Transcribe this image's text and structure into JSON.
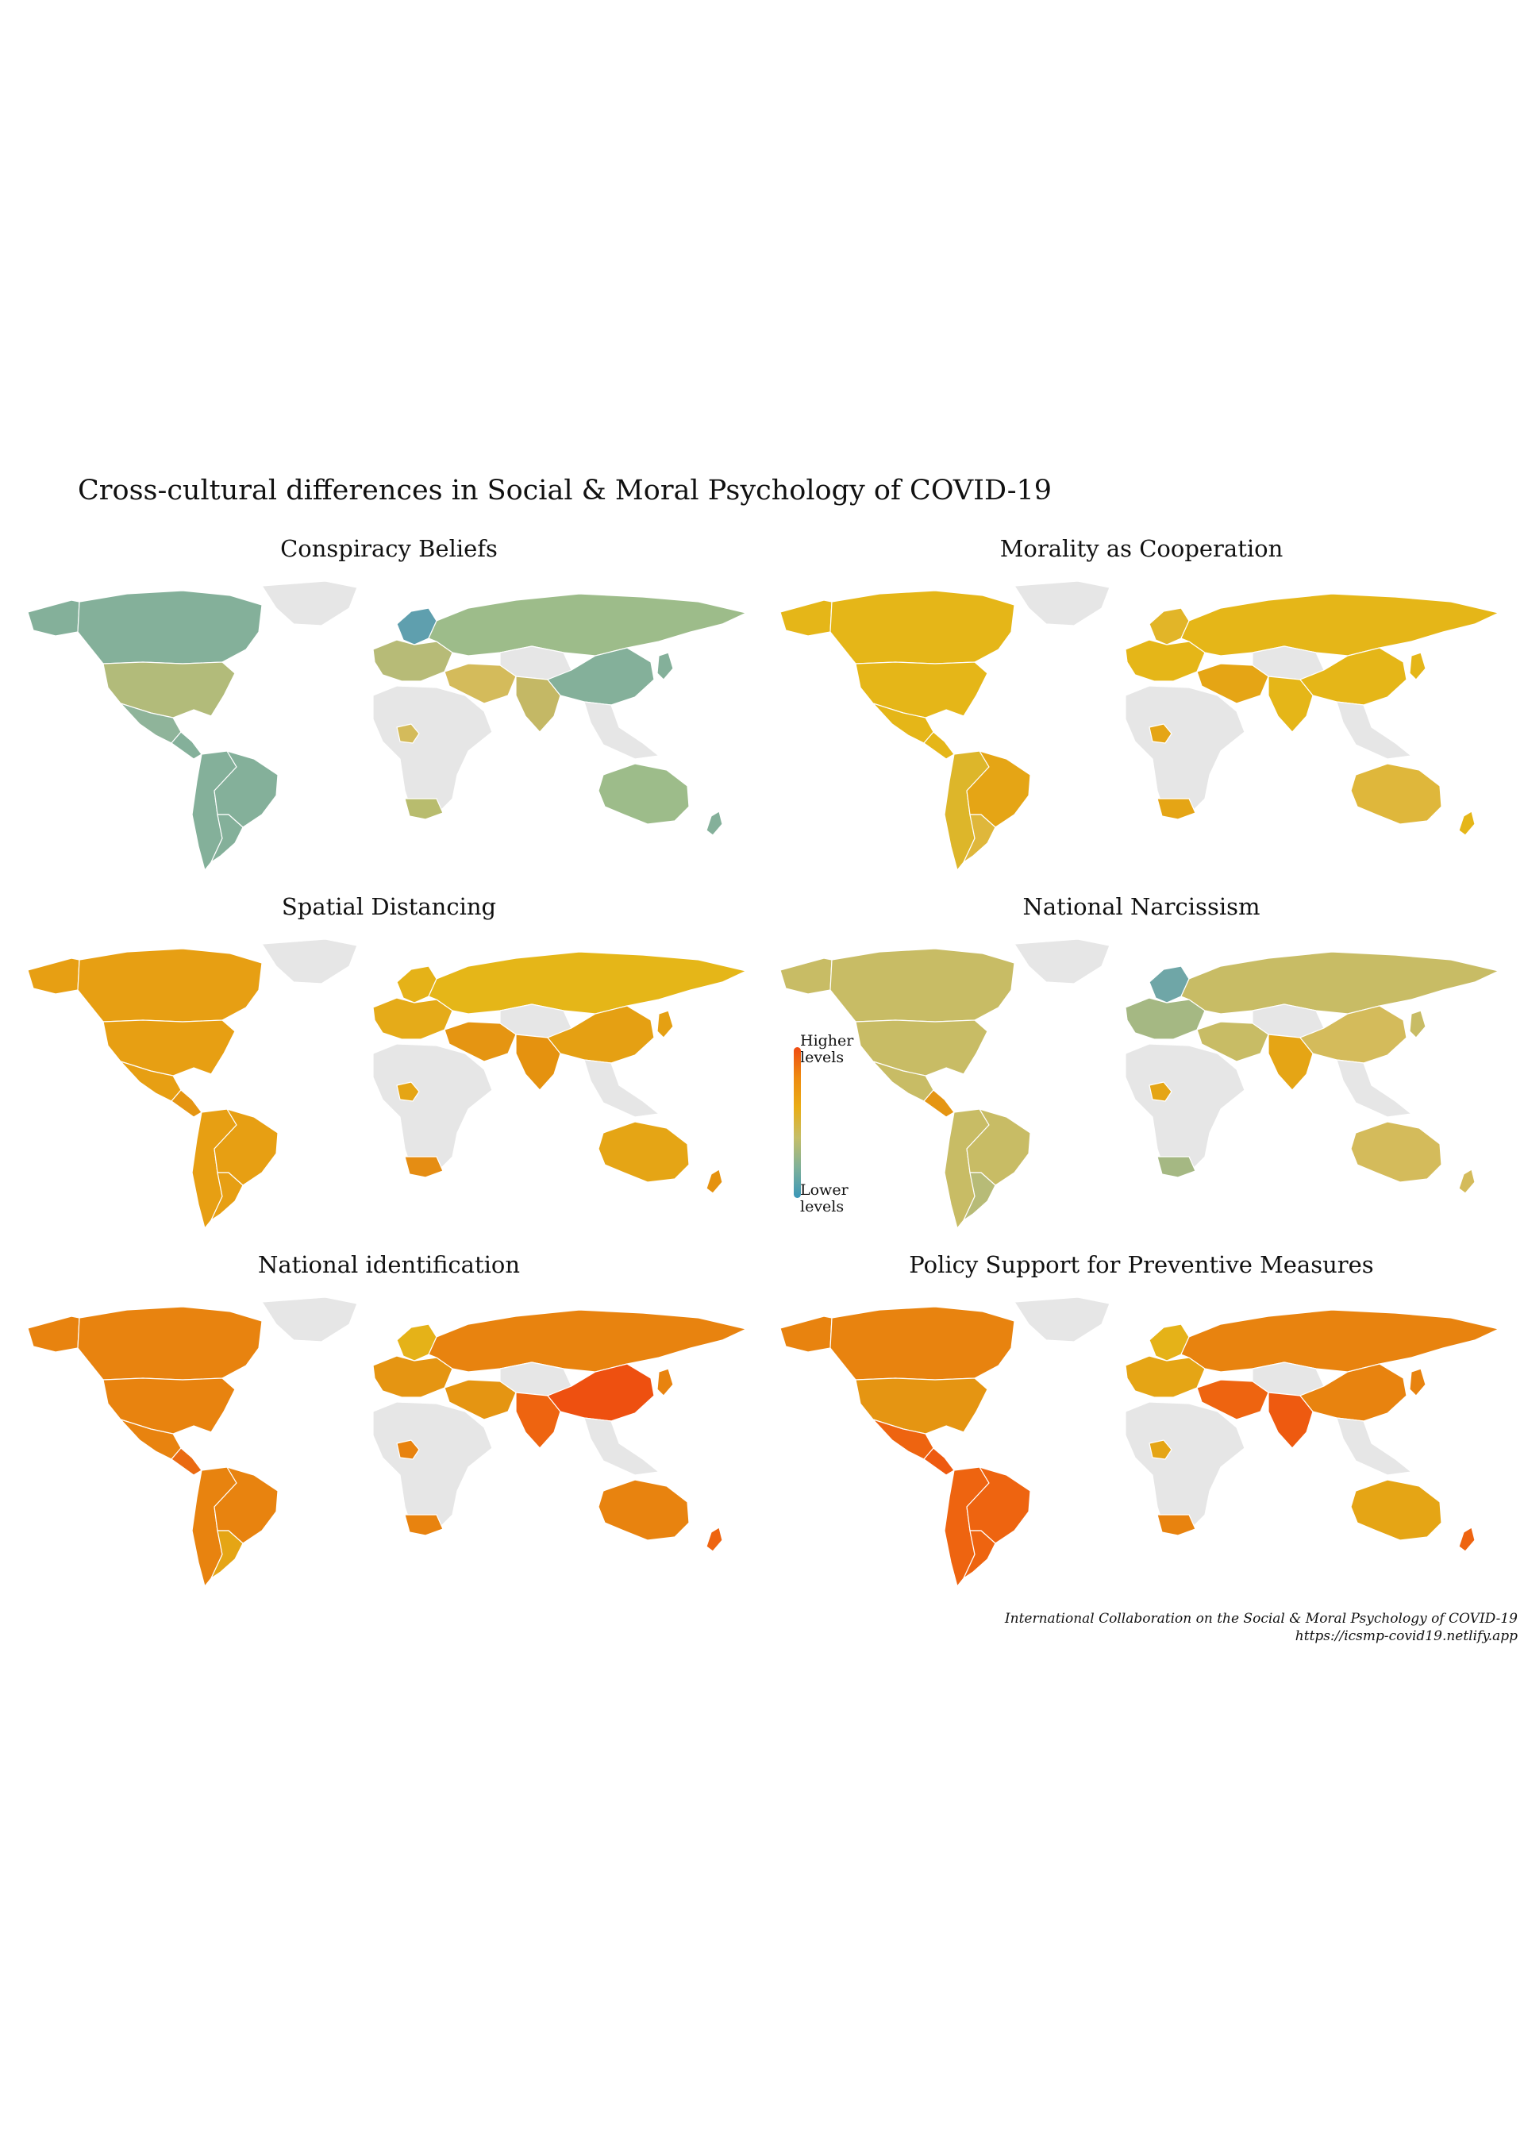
{
  "title": "Cross-cultural differences in Social & Moral Psychology of COVID-19",
  "panels": [
    {
      "title": "Conspiracy Beliefs",
      "colors": {
        "north_america": "#84b09a",
        "canada": "#84b09a",
        "usa": "#b2bb7a",
        "mexico": "#8fb49a",
        "central_america": "#84b09a",
        "south_america": "#84b09a",
        "brazil": "#84b09a",
        "argentina": "#84b09a",
        "greenland": "#e6e6e6",
        "europe_west": "#b7bb77",
        "europe_north": "#5f9fae",
        "russia": "#9dbc8a",
        "middle_east": "#d4bb5b",
        "india": "#c4b865",
        "china": "#84b09a",
        "japan": "#84b09a",
        "africa": "#e6e6e6",
        "nigeria": "#d4bb5b",
        "south_africa": "#b8bc6e",
        "australia": "#9dbc8a",
        "new_zealand": "#84b09a",
        "sea": "#e6e6e6",
        "central_asia": "#e6e6e6"
      }
    },
    {
      "title": "Morality as Cooperation",
      "colors": {
        "north_america": "#e5b618",
        "canada": "#e5b618",
        "usa": "#e5b618",
        "mexico": "#e5b618",
        "central_america": "#e5b618",
        "south_america": "#ddb62a",
        "brazil": "#e5a515",
        "argentina": "#dfb73b",
        "greenland": "#e6e6e6",
        "europe_west": "#e5b618",
        "europe_north": "#e2b528",
        "russia": "#e5b618",
        "middle_east": "#e5a515",
        "india": "#e5b618",
        "china": "#e5b618",
        "japan": "#e5b618",
        "africa": "#e6e6e6",
        "nigeria": "#e5a515",
        "south_africa": "#e5a515",
        "australia": "#dfb73b",
        "new_zealand": "#e5b618",
        "sea": "#e6e6e6",
        "central_asia": "#e6e6e6"
      }
    },
    {
      "title": "Spatial Distancing",
      "colors": {
        "north_america": "#e79f13",
        "canada": "#e79f13",
        "usa": "#e79f13",
        "mexico": "#e79f13",
        "central_america": "#e59512",
        "south_america": "#e79f13",
        "brazil": "#e79f13",
        "argentina": "#e79f13",
        "greenland": "#e6e6e6",
        "europe_west": "#e5ab19",
        "europe_north": "#e5b218",
        "russia": "#e5b618",
        "middle_east": "#e59512",
        "india": "#e5920f",
        "china": "#e5a013",
        "japan": "#e5a013",
        "africa": "#e6e6e6",
        "nigeria": "#e5a515",
        "south_africa": "#e58d13",
        "australia": "#e5a515",
        "new_zealand": "#e5920f",
        "sea": "#e6e6e6",
        "central_asia": "#e6e6e6"
      }
    },
    {
      "title": "National Narcissism",
      "colors": {
        "north_america": "#c8bc65",
        "canada": "#c8bc65",
        "usa": "#c8bc65",
        "mexico": "#c8bc65",
        "central_america": "#e59512",
        "south_america": "#c8bc65",
        "brazil": "#c8bc65",
        "argentina": "#b7bb77",
        "greenland": "#e6e6e6",
        "europe_west": "#a5b883",
        "europe_north": "#6fa6a7",
        "russia": "#c8bc65",
        "middle_east": "#c8bc65",
        "india": "#e5a515",
        "china": "#d4bb5b",
        "japan": "#c8bc65",
        "africa": "#e6e6e6",
        "nigeria": "#e5a515",
        "south_africa": "#a5b883",
        "australia": "#d4bb5b",
        "new_zealand": "#d4bb5b",
        "sea": "#e6e6e6",
        "central_asia": "#e6e6e6"
      }
    },
    {
      "title": "National identification",
      "colors": {
        "north_america": "#e8830f",
        "canada": "#e8830f",
        "usa": "#e8830f",
        "mexico": "#e8830f",
        "central_america": "#ea6a12",
        "south_america": "#e8830f",
        "brazil": "#e8830f",
        "argentina": "#e5a515",
        "greenland": "#e6e6e6",
        "europe_west": "#e59512",
        "europe_north": "#e5b218",
        "russia": "#e8830f",
        "middle_east": "#e59512",
        "india": "#ee6410",
        "china": "#ee5010",
        "japan": "#e8830f",
        "africa": "#e6e6e6",
        "nigeria": "#e8830f",
        "south_africa": "#e8830f",
        "australia": "#e8830f",
        "new_zealand": "#ee6410",
        "sea": "#e6e6e6",
        "central_asia": "#e6e6e6"
      }
    },
    {
      "title": "Policy Support for Preventive Measures",
      "colors": {
        "north_america": "#e8830f",
        "canada": "#e8830f",
        "usa": "#e59512",
        "mexico": "#ee6410",
        "central_america": "#ee5a10",
        "south_america": "#ee6410",
        "brazil": "#ee6410",
        "argentina": "#ee6410",
        "greenland": "#e6e6e6",
        "europe_west": "#e5a515",
        "europe_north": "#e5b218",
        "russia": "#e8830f",
        "middle_east": "#ee6410",
        "india": "#ee5a10",
        "china": "#e8830f",
        "japan": "#e8830f",
        "africa": "#e6e6e6",
        "nigeria": "#e5a515",
        "south_africa": "#e8830f",
        "australia": "#e5a515",
        "new_zealand": "#ee6410",
        "sea": "#e6e6e6",
        "central_asia": "#e6e6e6"
      }
    }
  ],
  "legend": {
    "high_line1": "Higher",
    "high_line2": "levels",
    "low_line1": "Lower",
    "low_line2": "levels"
  },
  "caption": {
    "line1": "International Collaboration on the Social & Moral Psychology of COVID-19",
    "line2": "https://icsmp-covid19.netlify.app"
  }
}
